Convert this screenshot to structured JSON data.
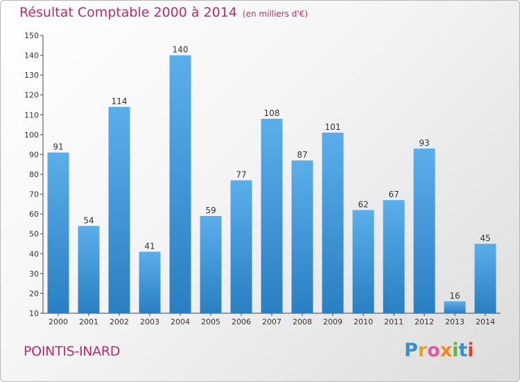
{
  "header": {
    "title": "Résultat Comptable 2000 à 2014",
    "subtitle": "(en milliers d'€)"
  },
  "footer": {
    "commune": "POINTIS-INARD",
    "logo_text": "Proxiti"
  },
  "colors": {
    "bar_light": "#5aaeea",
    "bar_dark": "#2a7fc2",
    "title": "#c0296a"
  },
  "chart_data": {
    "type": "bar",
    "title": "Résultat Comptable 2000 à 2014",
    "subtitle": "(en milliers d'€)",
    "categories": [
      "2000",
      "2001",
      "2002",
      "2003",
      "2004",
      "2005",
      "2006",
      "2007",
      "2008",
      "2009",
      "2010",
      "2011",
      "2012",
      "2013",
      "2014"
    ],
    "values": [
      91,
      54,
      114,
      41,
      140,
      59,
      77,
      108,
      87,
      101,
      62,
      67,
      93,
      16,
      45
    ],
    "ylim": [
      10,
      150
    ],
    "yticks": [
      10,
      20,
      30,
      40,
      50,
      60,
      70,
      80,
      90,
      100,
      110,
      120,
      130,
      140,
      150
    ],
    "grid": false,
    "xlabel": "",
    "ylabel": ""
  }
}
